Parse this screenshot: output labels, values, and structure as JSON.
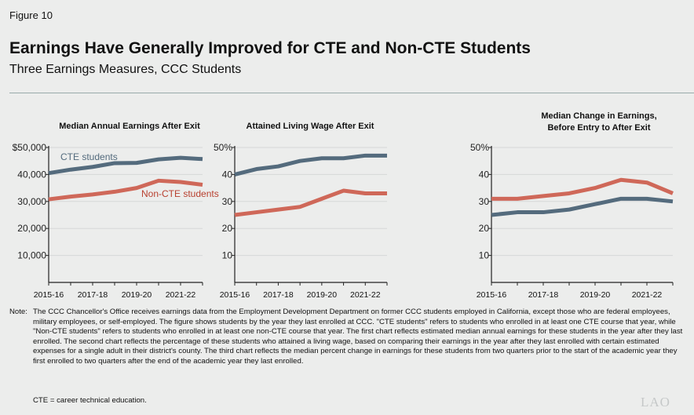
{
  "figure_label": "Figure 10",
  "title": "Earnings Have Generally Improved for CTE and Non-CTE Students",
  "subtitle": "Three Earnings Measures, CCC Students",
  "colors": {
    "cte": "#546b7d",
    "non_cte": "#cf6859",
    "non_cte_label": "#b8402f",
    "grid": "#d6d8d8"
  },
  "chart_data": [
    {
      "type": "line",
      "title": "Median Annual Earnings After Exit",
      "x": [
        "2015-16",
        "2016-17",
        "2017-18",
        "2018-19",
        "2019-20",
        "2020-21",
        "2021-22",
        "2022-23"
      ],
      "x_tick_labels": [
        "2015-16",
        "2017-18",
        "2019-20",
        "2021-22"
      ],
      "y_tick_labels": [
        "$50,000",
        "40,000",
        "30,000",
        "20,000",
        "10,000"
      ],
      "y_ticks": [
        50000,
        40000,
        30000,
        20000,
        10000
      ],
      "ylim": [
        0,
        50000
      ],
      "grid": true,
      "series": [
        {
          "name": "CTE students",
          "values": [
            40500,
            41800,
            42800,
            44200,
            44300,
            45600,
            46200,
            45700
          ]
        },
        {
          "name": "Non-CTE students",
          "values": [
            30800,
            31800,
            32600,
            33600,
            35000,
            37700,
            37200,
            36200
          ]
        }
      ]
    },
    {
      "type": "line",
      "title": "Attained Living Wage After Exit",
      "x": [
        "2015-16",
        "2016-17",
        "2017-18",
        "2018-19",
        "2019-20",
        "2020-21",
        "2021-22",
        "2022-23"
      ],
      "x_tick_labels": [
        "2015-16",
        "2017-18",
        "2019-20",
        "2021-22"
      ],
      "y_tick_labels": [
        "50%",
        "40",
        "30",
        "20",
        "10"
      ],
      "y_ticks": [
        50,
        40,
        30,
        20,
        10
      ],
      "ylim": [
        0,
        50
      ],
      "grid": true,
      "series": [
        {
          "values": [
            40,
            42,
            43,
            45,
            46,
            46,
            47,
            47
          ]
        },
        {
          "values": [
            25,
            26,
            27,
            28,
            31,
            34,
            33,
            33
          ]
        }
      ]
    },
    {
      "type": "line",
      "title": "Median Change in Earnings, Before Entry to After Exit",
      "title_lines": [
        "Median Change in Earnings,",
        "Before Entry to After Exit"
      ],
      "x": [
        "2015-16",
        "2016-17",
        "2017-18",
        "2018-19",
        "2019-20",
        "2020-21",
        "2021-22",
        "2022-23"
      ],
      "x_tick_labels": [
        "2015-16",
        "2017-18",
        "2019-20",
        "2021-22"
      ],
      "y_tick_labels": [
        "50%",
        "40",
        "30",
        "20",
        "10"
      ],
      "y_ticks": [
        50,
        40,
        30,
        20,
        10
      ],
      "ylim": [
        0,
        50
      ],
      "grid": true,
      "series": [
        {
          "values": [
            25,
            26,
            26,
            27,
            29,
            31,
            31,
            30
          ]
        },
        {
          "values": [
            31,
            31,
            32,
            33,
            35,
            38,
            37,
            33
          ]
        }
      ]
    }
  ],
  "note_label": "Note:",
  "note": "The CCC Chancellor's Office receives earnings data from the Employment Development Department on former CCC students employed in California, except those who are federal employees, military employees, or self-employed. The figure shows students by the year they last enrolled at CCC. \"CTE students\" refers to students who enrolled in at least one CTE course that year, while \"Non-CTE students\" refers to students who enrolled in at least one non-CTE course that year. The first chart reflects estimated median annual earnings for these students in the year after they last enrolled. The second chart reflects the percentage of these students who attained a living wage, based on comparing their earnings in the year after they last enrolled with certain estimated expenses for a single adult in their district's county. The third chart reflects the median percent change in earnings for these students from two quarters prior to the start of the academic year they first enrolled to two quarters after the end of the academic year they last enrolled.",
  "abbreviation": "CTE = career technical education.",
  "logo": "LAO"
}
